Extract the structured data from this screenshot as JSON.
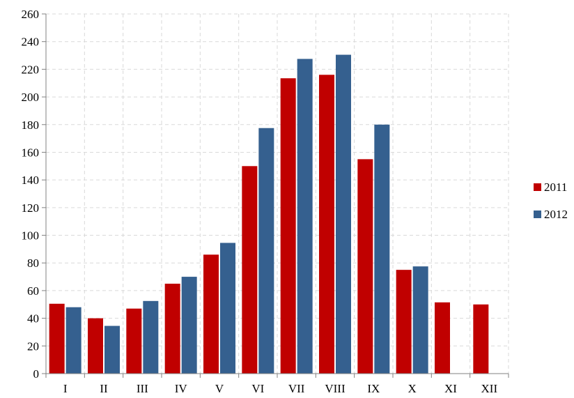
{
  "chart_data": {
    "type": "bar",
    "categories": [
      "I",
      "II",
      "III",
      "IV",
      "V",
      "VI",
      "VII",
      "VIII",
      "IX",
      "X",
      "XI",
      "XII"
    ],
    "series": [
      {
        "name": "2011",
        "color": "#C00000",
        "values": [
          50.5,
          40,
          47,
          65,
          86,
          150,
          213.5,
          216,
          155,
          75,
          51.5,
          50
        ]
      },
      {
        "name": "2012",
        "color": "#35608F",
        "values": [
          48,
          34.5,
          52.5,
          70,
          94.5,
          177.5,
          227.5,
          230.5,
          180,
          77.5,
          null,
          null
        ]
      }
    ],
    "ylim": [
      0,
      260
    ],
    "yticks": [
      0,
      20,
      40,
      60,
      80,
      100,
      120,
      140,
      160,
      180,
      200,
      220,
      240,
      260
    ],
    "grid": true,
    "legend_position": "right",
    "title": "",
    "xlabel": "",
    "ylabel": ""
  }
}
